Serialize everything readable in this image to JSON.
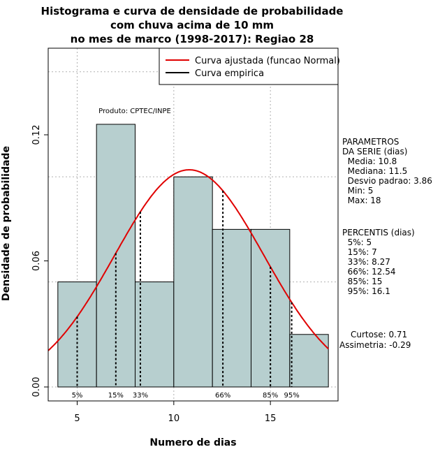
{
  "chart_data": {
    "type": "histogram",
    "title_lines": [
      "Histograma e curva de densidade de probabilidade",
      "com chuva acima de 10 mm",
      "no mes de marco (1998-2017): Regiao 28"
    ],
    "xlabel": "Numero de dias",
    "ylabel": "Densidade de probabilidade",
    "xlim": [
      3.5,
      18.5
    ],
    "ylim": [
      0,
      0.15
    ],
    "xticks": [
      5,
      10,
      15
    ],
    "yticks": [
      0.0,
      0.06,
      0.12
    ],
    "ytick_labels": [
      "0.00",
      "0.06",
      "0.12"
    ],
    "grid": true,
    "bins": [
      {
        "x0": 4,
        "x1": 6,
        "density": 0.05
      },
      {
        "x0": 6,
        "x1": 8,
        "density": 0.125
      },
      {
        "x0": 8,
        "x1": 10,
        "density": 0.05
      },
      {
        "x0": 10,
        "x1": 12,
        "density": 0.1
      },
      {
        "x0": 12,
        "x1": 14,
        "density": 0.075
      },
      {
        "x0": 14,
        "x1": 16,
        "density": 0.075
      },
      {
        "x0": 16,
        "x1": 18,
        "density": 0.025
      }
    ],
    "bar_color": "#b7cfcf",
    "normal_fit": {
      "mean": 10.8,
      "sd": 3.86,
      "color": "#e00000"
    },
    "percentile_lines": [
      {
        "label": "5%",
        "x": 5
      },
      {
        "label": "15%",
        "x": 7
      },
      {
        "label": "33%",
        "x": 8.27
      },
      {
        "label": "66%",
        "x": 12.54
      },
      {
        "label": "85%",
        "x": 15
      },
      {
        "label": "95%",
        "x": 16.1
      }
    ],
    "legend": {
      "position": "top-right",
      "entries": [
        {
          "label": "Curva ajustada (funcao Normal)",
          "color": "#e00000"
        },
        {
          "label": "Curva empirica",
          "color": "#000000"
        }
      ]
    },
    "annotation": "Produto: CPTEC/INPE"
  },
  "stats": {
    "param_lines": [
      "PARAMETROS",
      "DA SERIE (dias)",
      "  Media: 10.8",
      "  Mediana: 11.5",
      "  Desvio padrao: 3.86",
      "  Min: 5",
      "  Max: 18"
    ],
    "percent_lines": [
      "PERCENTIS (dias)",
      "  5%: 5",
      "  15%: 7",
      "  33%: 8.27",
      "  66%: 12.54",
      "  85%: 15",
      "  95%: 16.1"
    ],
    "curtose": "Curtose: 0.71",
    "assimetria": "Assimetria: -0.29"
  }
}
